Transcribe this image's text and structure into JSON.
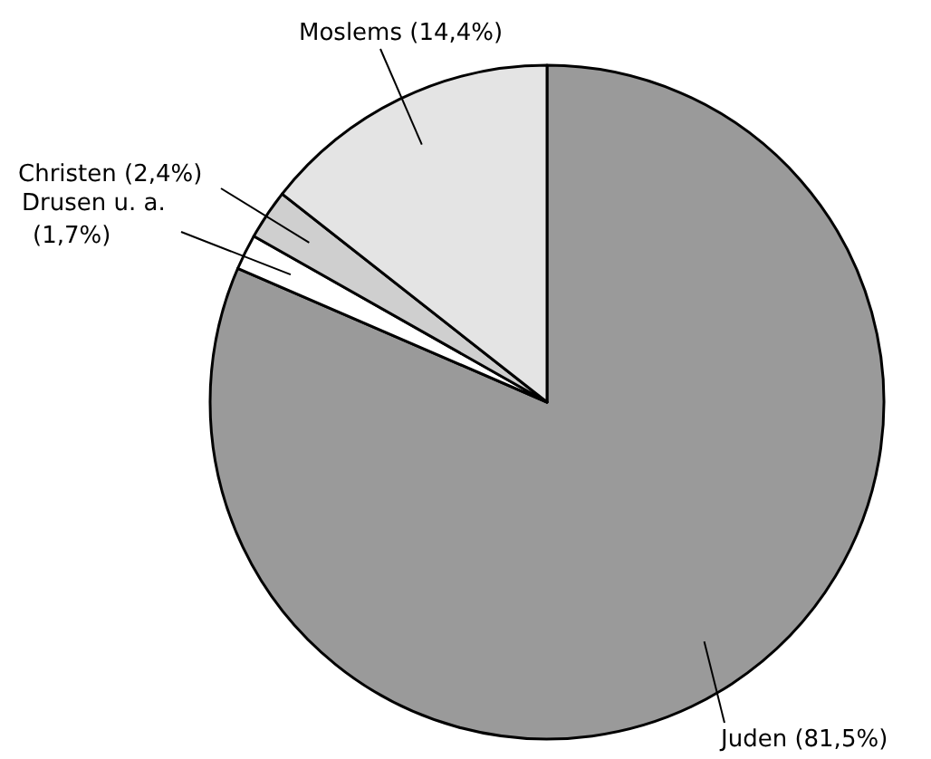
{
  "chart_data": {
    "type": "pie",
    "categories": [
      "Juden",
      "Drusen u. a.",
      "Christen",
      "Moslems"
    ],
    "values": [
      81.5,
      1.7,
      2.4,
      14.4
    ],
    "value_labels": [
      "(81,5%)",
      "(1,7%)",
      "(2,4%)",
      "(14,4%)"
    ],
    "colors": [
      "#9a9a9a",
      "#ffffff",
      "#cfcfcf",
      "#e4e4e4"
    ]
  }
}
